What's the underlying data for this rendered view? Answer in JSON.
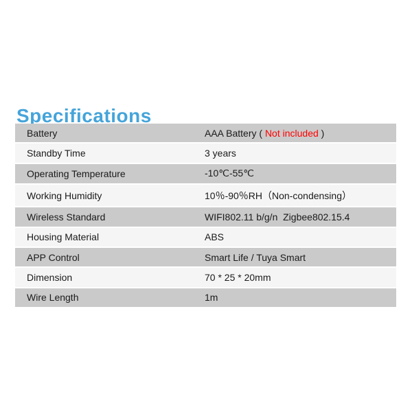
{
  "page": {
    "background_color": "#ffffff",
    "text_color": "#1a1a1a"
  },
  "title": {
    "text": "Specifications",
    "color": "#45a4da"
  },
  "table": {
    "row_color_odd": "#cacaca",
    "row_color_even": "#f5f5f5",
    "separator_color": "#ffffff",
    "highlight_color": "#ff0000",
    "rows": [
      {
        "label": "Battery",
        "value_pre": "AAA Battery ( ",
        "value_red": "Not included",
        "value_post": " )"
      },
      {
        "label": "Standby Time",
        "value": "3 years"
      },
      {
        "label": "Operating Temperature",
        "value": "-10℃-55℃"
      },
      {
        "label": "Working Humidity",
        "value": "10％-90％RH（Non-condensing）"
      },
      {
        "label": "Wireless Standard",
        "value": "WIFI802.11 b/g/n  Zigbee802.15.4"
      },
      {
        "label": "Housing Material",
        "value": "ABS"
      },
      {
        "label": "APP Control",
        "value": "Smart Life / Tuya Smart"
      },
      {
        "label": "Dimension",
        "value": "70 * 25 * 20mm"
      },
      {
        "label": "Wire Length",
        "value": "1m"
      }
    ]
  }
}
